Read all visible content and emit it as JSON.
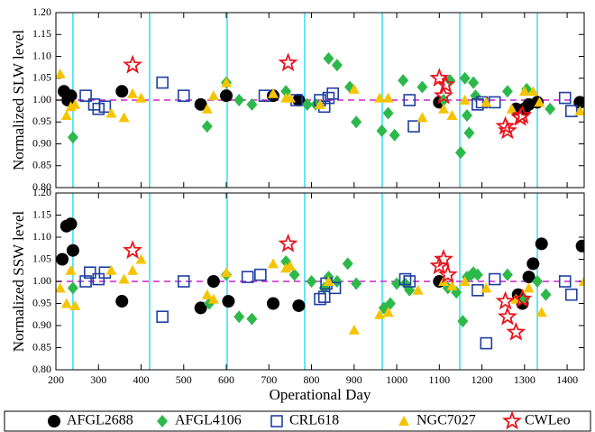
{
  "chart_data": [
    {
      "type": "scatter",
      "ylabel": "Normalized SLW level",
      "xlim": [
        200,
        1440
      ],
      "xticks": [
        200,
        300,
        400,
        500,
        600,
        700,
        800,
        900,
        1000,
        1100,
        1200,
        1300,
        1400
      ],
      "ylim": [
        0.8,
        1.2
      ],
      "yticks": [
        {
          "value": 0.8,
          "label": "0.80"
        },
        {
          "value": 0.85,
          "label": "0.85"
        },
        {
          "value": 0.9,
          "label": "0.90"
        },
        {
          "value": 0.95,
          "label": "0.95"
        },
        {
          "value": 1.0,
          "label": "1.00"
        },
        {
          "value": 1.05,
          "label": "1.05"
        },
        {
          "value": 1.1,
          "label": "1.10"
        },
        {
          "value": 1.15,
          "label": "1.15"
        },
        {
          "value": 1.2,
          "label": "1.20"
        }
      ],
      "vlines": [
        240,
        420,
        602,
        784,
        966,
        1148,
        1330
      ],
      "vline_color": "#33ddee",
      "hline": 1.0,
      "hline_color": "#cc22cc",
      "series": [
        {
          "name": "AFGL2688",
          "color": "#000000",
          "marker": "circle",
          "x": [
            219,
            228,
            235,
            355,
            540,
            600,
            710,
            770,
            1100,
            1280,
            1300,
            1310,
            1330,
            1430
          ],
          "values": [
            1.02,
            1.0,
            1.01,
            1.02,
            0.99,
            1.01,
            1.01,
            1.0,
            0.995,
            0.98,
            0.98,
            0.99,
            0.995,
            0.995
          ]
        },
        {
          "name": "AFGL4106",
          "color": "#2db84b",
          "marker": "diamond",
          "x": [
            240,
            555,
            600,
            630,
            660,
            740,
            790,
            810,
            840,
            860,
            890,
            905,
            965,
            980,
            995,
            1015,
            1060,
            1110,
            1125,
            1150,
            1160,
            1165,
            1170,
            1180,
            1185,
            1260,
            1305,
            1360
          ],
          "values": [
            0.915,
            0.94,
            1.04,
            1.0,
            0.99,
            1.02,
            0.99,
            0.99,
            1.095,
            1.08,
            1.03,
            0.95,
            0.93,
            0.97,
            0.92,
            1.045,
            1.03,
            1.0,
            1.045,
            0.88,
            1.05,
            0.965,
            0.925,
            1.04,
            1.01,
            1.02,
            1.025,
            0.98
          ]
        },
        {
          "name": "CRL618",
          "color": "#1f3fa0",
          "marker": "square",
          "x": [
            270,
            290,
            300,
            315,
            450,
            500,
            690,
            765,
            820,
            830,
            840,
            850,
            1030,
            1040,
            1190,
            1200,
            1230,
            1395,
            1410
          ],
          "values": [
            1.01,
            0.99,
            0.98,
            0.985,
            1.04,
            1.01,
            1.01,
            1.0,
            1.0,
            0.985,
            1.005,
            1.015,
            1.0,
            0.94,
            0.99,
            0.995,
            0.995,
            1.005,
            0.975
          ]
        },
        {
          "name": "NGC7027",
          "color": "#f5c400",
          "marker": "triangle",
          "x": [
            210,
            225,
            235,
            245,
            330,
            360,
            380,
            400,
            555,
            570,
            600,
            710,
            740,
            750,
            820,
            900,
            960,
            980,
            1060,
            1110,
            1130,
            1160,
            1210,
            1270,
            1300,
            1320,
            1335,
            1430
          ],
          "values": [
            1.06,
            0.965,
            0.985,
            0.99,
            0.97,
            0.96,
            1.015,
            1.005,
            0.98,
            1.01,
            1.04,
            1.015,
            1.005,
            1.005,
            0.99,
            1.025,
            1.005,
            1.005,
            0.96,
            0.98,
            0.965,
            1.0,
            0.995,
            0.98,
            1.02,
            1.02,
            0.995,
            0.975
          ]
        },
        {
          "name": "CWLeo",
          "color": "#e8141c",
          "marker": "star",
          "x": [
            380,
            745,
            1100,
            1110,
            1115,
            1255,
            1260,
            1290,
            1295
          ],
          "values": [
            1.08,
            1.085,
            1.05,
            1.01,
            1.035,
            0.94,
            0.93,
            0.96,
            0.965
          ]
        }
      ]
    },
    {
      "type": "scatter",
      "ylabel": "Normalized SSW level",
      "xlabel": "Operational Day",
      "xlim": [
        200,
        1440
      ],
      "xticks": [
        200,
        300,
        400,
        500,
        600,
        700,
        800,
        900,
        1000,
        1100,
        1200,
        1300,
        1400
      ],
      "ylim": [
        0.8,
        1.2
      ],
      "yticks": [
        {
          "value": 0.8,
          "label": "0.80"
        },
        {
          "value": 0.85,
          "label": "0.85"
        },
        {
          "value": 0.9,
          "label": "0.90"
        },
        {
          "value": 0.95,
          "label": "0.95"
        },
        {
          "value": 1.0,
          "label": "1.00"
        },
        {
          "value": 1.05,
          "label": "1.05"
        },
        {
          "value": 1.1,
          "label": "1.10"
        },
        {
          "value": 1.15,
          "label": "1.15"
        },
        {
          "value": 1.2,
          "label": "1.20"
        }
      ],
      "vlines": [
        240,
        420,
        602,
        784,
        966,
        1148,
        1330
      ],
      "vline_color": "#33ddee",
      "hline": 1.0,
      "hline_color": "#cc22cc",
      "series": [
        {
          "color": "#000000",
          "marker": "circle",
          "x": [
            215,
            225,
            235,
            240,
            355,
            540,
            570,
            605,
            710,
            770,
            1100,
            1285,
            1295,
            1310,
            1320,
            1340,
            1435
          ],
          "values": [
            1.05,
            1.125,
            1.13,
            1.07,
            0.955,
            0.94,
            1.0,
            0.955,
            0.95,
            0.945,
            1.0,
            0.97,
            0.95,
            1.01,
            1.04,
            1.085,
            1.08
          ]
        },
        {
          "color": "#2db84b",
          "marker": "diamond",
          "x": [
            240,
            560,
            600,
            630,
            660,
            740,
            760,
            800,
            830,
            840,
            860,
            885,
            905,
            970,
            985,
            1000,
            1020,
            1030,
            1120,
            1140,
            1155,
            1165,
            1175,
            1180,
            1190,
            1260,
            1300,
            1330,
            1350
          ],
          "values": [
            0.985,
            0.95,
            1.015,
            0.92,
            0.915,
            1.045,
            1.015,
            1.0,
            0.985,
            1.01,
            1.0,
            1.04,
            0.995,
            0.94,
            0.95,
            0.995,
            0.995,
            0.98,
            0.985,
            0.975,
            0.91,
            1.01,
            1.015,
            1.02,
            1.015,
            1.015,
            0.96,
            1.0,
            0.97
          ]
        },
        {
          "color": "#1f3fa0",
          "marker": "square",
          "x": [
            270,
            280,
            300,
            315,
            450,
            500,
            650,
            680,
            820,
            830,
            835,
            855,
            1020,
            1030,
            1190,
            1210,
            1230,
            1395,
            1410
          ],
          "values": [
            1.0,
            1.02,
            1.005,
            1.02,
            0.92,
            1.0,
            1.01,
            1.015,
            0.96,
            0.965,
            0.995,
            0.985,
            1.005,
            1.0,
            0.98,
            0.86,
            1.005,
            1.0,
            0.97
          ]
        },
        {
          "color": "#f5c400",
          "marker": "triangle",
          "x": [
            210,
            225,
            235,
            245,
            330,
            360,
            380,
            400,
            555,
            570,
            600,
            710,
            740,
            750,
            840,
            900,
            960,
            980,
            1050,
            1110,
            1130,
            1160,
            1210,
            1280,
            1310,
            1340,
            1440
          ],
          "values": [
            0.985,
            0.95,
            1.025,
            0.945,
            1.025,
            1.005,
            1.025,
            1.05,
            0.97,
            0.96,
            1.02,
            1.04,
            1.03,
            1.035,
            1.0,
            0.89,
            0.925,
            0.93,
            0.98,
            1.0,
            0.99,
            1.0,
            0.985,
            0.96,
            0.985,
            0.93,
            1.0
          ]
        },
        {
          "color": "#e8141c",
          "marker": "star",
          "x": [
            380,
            745,
            1100,
            1110,
            1120,
            1255,
            1260,
            1280,
            1295
          ],
          "values": [
            1.07,
            1.085,
            1.035,
            1.05,
            1.015,
            0.955,
            0.92,
            0.885,
            0.96
          ]
        }
      ]
    }
  ]
}
